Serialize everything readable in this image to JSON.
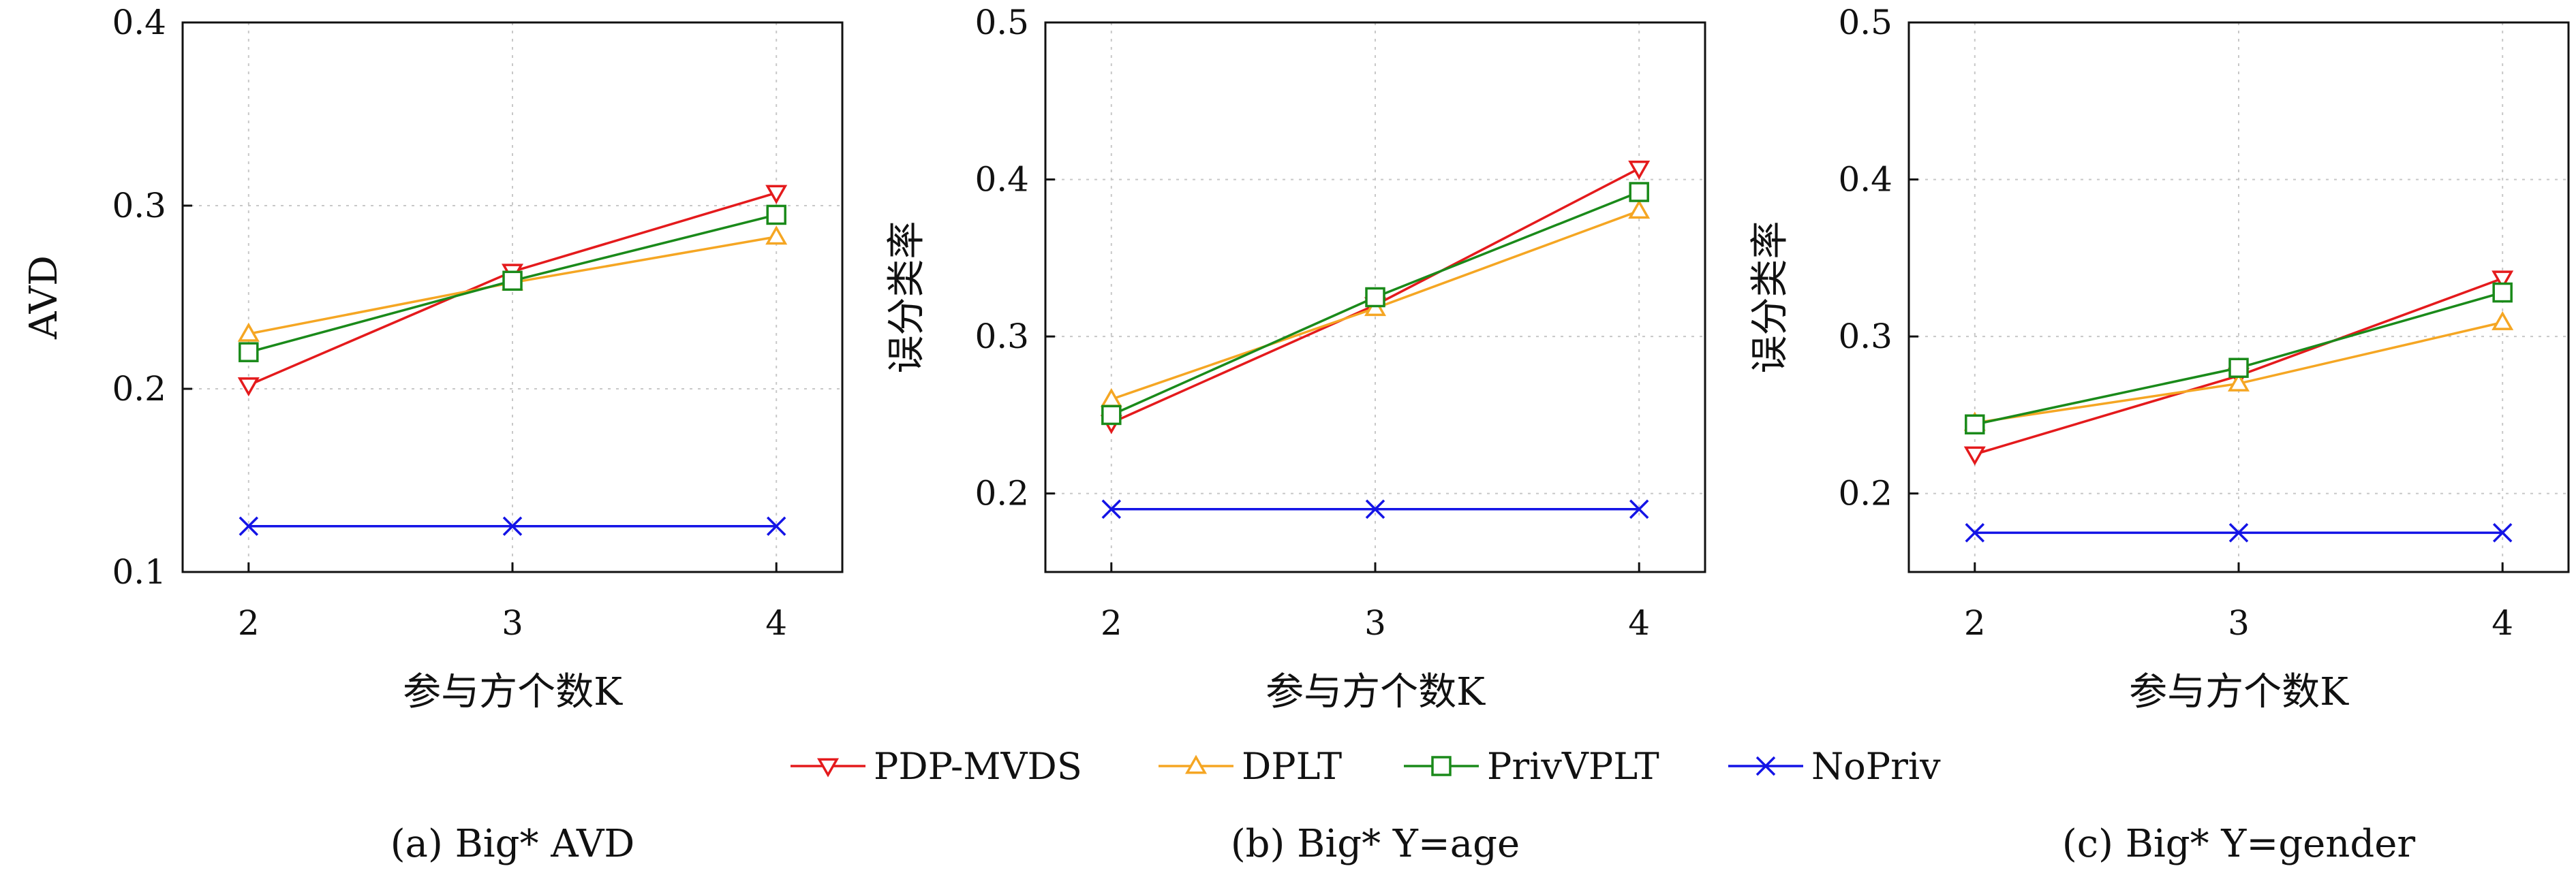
{
  "chart_data": [
    {
      "type": "line",
      "caption": "(a) Big* AVD",
      "xlabel": "参与方个数K",
      "ylabel": "AVD",
      "x": [
        2,
        3,
        4
      ],
      "xlim": [
        1.75,
        4.25
      ],
      "ylim": [
        0.1,
        0.4
      ],
      "yticks": [
        0.1,
        0.2,
        0.3,
        0.4
      ],
      "grid": true,
      "series": [
        {
          "name": "PDP-MVDS",
          "values": [
            0.202,
            0.264,
            0.307
          ]
        },
        {
          "name": "DPLT",
          "values": [
            0.23,
            0.258,
            0.283
          ]
        },
        {
          "name": "PrivVPLT",
          "values": [
            0.22,
            0.259,
            0.295
          ]
        },
        {
          "name": "NoPriv",
          "values": [
            0.125,
            0.125,
            0.125
          ]
        }
      ]
    },
    {
      "type": "line",
      "caption": "(b) Big* Y=age",
      "xlabel": "参与方个数K",
      "ylabel": "误分类率",
      "x": [
        2,
        3,
        4
      ],
      "xlim": [
        1.75,
        4.25
      ],
      "ylim": [
        0.15,
        0.5
      ],
      "yticks": [
        0.2,
        0.3,
        0.4,
        0.5
      ],
      "grid": true,
      "series": [
        {
          "name": "PDP-MVDS",
          "values": [
            0.245,
            0.32,
            0.407
          ]
        },
        {
          "name": "DPLT",
          "values": [
            0.26,
            0.318,
            0.38
          ]
        },
        {
          "name": "PrivVPLT",
          "values": [
            0.25,
            0.325,
            0.392
          ]
        },
        {
          "name": "NoPriv",
          "values": [
            0.19,
            0.19,
            0.19
          ]
        }
      ]
    },
    {
      "type": "line",
      "caption": "(c) Big* Y=gender",
      "xlabel": "参与方个数K",
      "ylabel": "误分类率",
      "x": [
        2,
        3,
        4
      ],
      "xlim": [
        1.75,
        4.25
      ],
      "ylim": [
        0.15,
        0.5
      ],
      "yticks": [
        0.2,
        0.3,
        0.4,
        0.5
      ],
      "grid": true,
      "series": [
        {
          "name": "PDP-MVDS",
          "values": [
            0.225,
            0.275,
            0.337
          ]
        },
        {
          "name": "DPLT",
          "values": [
            0.245,
            0.27,
            0.309
          ]
        },
        {
          "name": "PrivVPLT",
          "values": [
            0.244,
            0.28,
            0.328
          ]
        },
        {
          "name": "NoPriv",
          "values": [
            0.175,
            0.175,
            0.175
          ]
        }
      ]
    }
  ],
  "legend": {
    "placement": "bottom-center",
    "entries": [
      {
        "name": "PDP-MVDS",
        "color": "#e41a1c",
        "marker": "triangle-down"
      },
      {
        "name": "DPLT",
        "color": "#f5a623",
        "marker": "triangle-up"
      },
      {
        "name": "PrivVPLT",
        "color": "#1a8a1a",
        "marker": "square"
      },
      {
        "name": "NoPriv",
        "color": "#1414e6",
        "marker": "x"
      }
    ]
  }
}
